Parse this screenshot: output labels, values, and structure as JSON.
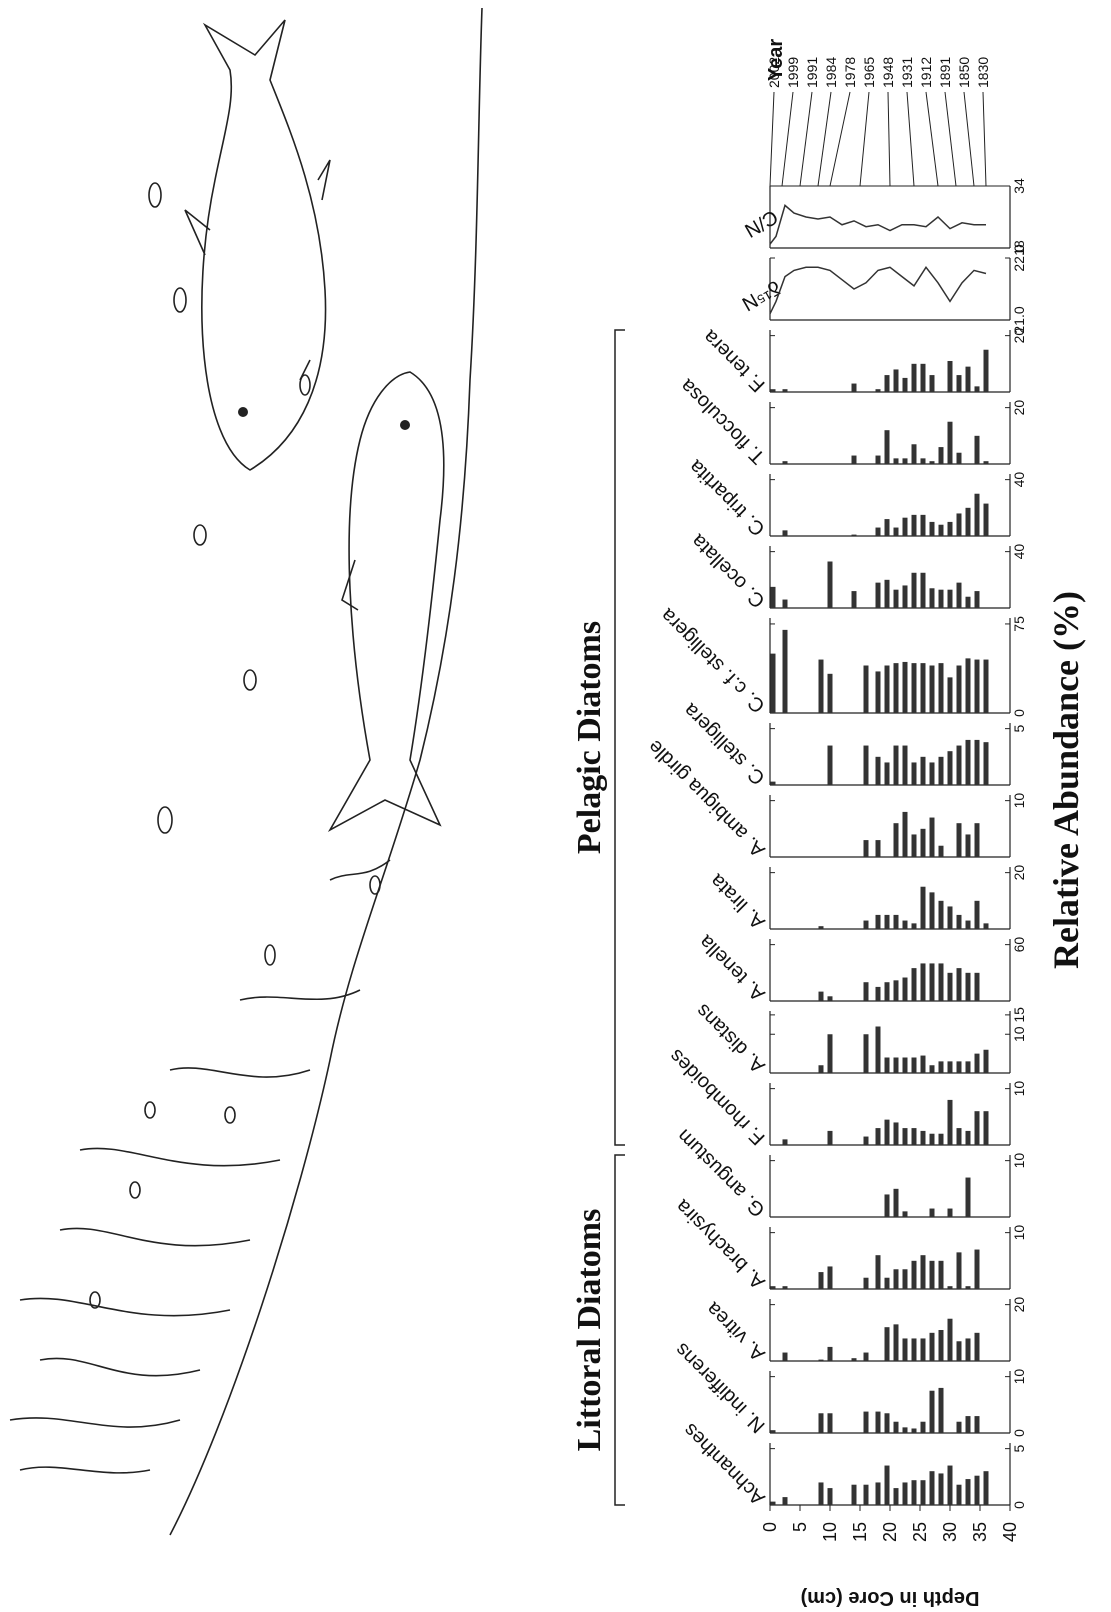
{
  "chart_data": {
    "type": "bar",
    "depth_label": "Depth in Core (cm)",
    "value_label": "Relative Abundance (%)",
    "depth_lim": [
      0,
      40
    ],
    "depth_ticks": [
      0,
      5,
      10,
      15,
      20,
      25,
      30,
      35,
      40
    ],
    "depths": [
      0.5,
      2.5,
      8.5,
      10,
      14,
      16,
      18,
      19.5,
      21,
      22.5,
      24,
      25.5,
      27,
      28.5,
      30,
      31.5,
      33,
      34.5,
      36
    ],
    "color": "#333333",
    "groups": [
      {
        "name": "Littoral Diatoms",
        "panels": [
          {
            "name": "Achnanthes",
            "xlim": [
              0,
              5.5
            ],
            "xticks": [
              0,
              5
            ],
            "values": [
              0.3,
              0.7,
              2,
              1.5,
              1.8,
              1.8,
              2,
              3.5,
              1.5,
              2,
              2.2,
              2.2,
              3,
              2.8,
              3.5,
              1.8,
              2.3,
              2.6,
              3
            ]
          },
          {
            "name": "N. indifferens",
            "xlim": [
              0,
              11
            ],
            "xticks": [
              0,
              10
            ],
            "values": [
              0.5,
              0,
              3.5,
              3.5,
              0,
              3.8,
              3.8,
              3.5,
              2,
              1,
              0.8,
              2,
              7.5,
              8,
              0,
              2,
              3,
              3,
              0
            ]
          },
          {
            "name": "A. vitrea",
            "xlim": [
              0,
              22
            ],
            "xticks": [
              20
            ],
            "values": [
              0,
              3,
              0.5,
              5,
              1,
              3,
              0,
              12,
              13,
              8,
              8,
              8,
              10,
              11,
              15,
              7,
              8,
              10,
              0
            ]
          },
          {
            "name": "A. brachysira",
            "xlim": [
              0,
              11
            ],
            "xticks": [
              10
            ],
            "values": [
              0.5,
              0.5,
              3,
              4,
              0,
              2,
              6,
              2,
              3.5,
              3.5,
              5,
              6,
              5,
              5,
              0.5,
              6.5,
              0.5,
              7,
              0
            ]
          },
          {
            "name": "G. angustum",
            "xlim": [
              0,
              11
            ],
            "xticks": [
              10
            ],
            "values": [
              0,
              0,
              0,
              0,
              0,
              0,
              0,
              4,
              5,
              1,
              0,
              0,
              1.5,
              0,
              1.5,
              0,
              7,
              0,
              0
            ]
          }
        ]
      },
      {
        "name": "Pelagic Diatoms",
        "panels": [
          {
            "name": "F. rhomboides",
            "xlim": [
              0,
              11
            ],
            "xticks": [
              10
            ],
            "values": [
              0,
              1,
              0,
              2.5,
              0,
              1.5,
              3,
              4.5,
              4,
              3,
              3,
              2.5,
              2,
              2,
              8,
              3,
              2.5,
              6,
              6
            ]
          },
          {
            "name": "A. distans",
            "xlim": [
              0,
              16
            ],
            "xticks": [
              10,
              15
            ],
            "values": [
              0,
              0,
              2,
              10,
              0,
              10,
              12,
              4,
              4,
              4,
              4,
              4.5,
              2,
              3,
              3,
              3,
              3,
              5,
              6
            ]
          },
          {
            "name": "A. tenella",
            "xlim": [
              0,
              66
            ],
            "xticks": [
              60
            ],
            "values": [
              0,
              0,
              10,
              5,
              0,
              20,
              15,
              20,
              22,
              25,
              35,
              40,
              40,
              40,
              30,
              35,
              30,
              30,
              0
            ]
          },
          {
            "name": "A. lirata",
            "xlim": [
              0,
              22
            ],
            "xticks": [
              20
            ],
            "values": [
              0,
              0,
              1,
              0,
              0,
              3,
              5,
              5,
              5,
              3,
              2,
              15,
              13,
              10,
              8,
              5,
              3,
              10,
              2
            ]
          },
          {
            "name": "A. ambigua girdle",
            "xlim": [
              0,
              11
            ],
            "xticks": [
              10
            ],
            "values": [
              0,
              0,
              0,
              0,
              0,
              3,
              3,
              0,
              6,
              8,
              4,
              5,
              7,
              2,
              0,
              6,
              4,
              6,
              0
            ]
          },
          {
            "name": "C. stelligera",
            "xlim": [
              0,
              5.5
            ],
            "xticks": [
              5
            ],
            "values": [
              0.3,
              0,
              0,
              3.5,
              0,
              3.5,
              2.5,
              2,
              3.5,
              3.5,
              2,
              2.5,
              2,
              2.5,
              3,
              3.5,
              4,
              4,
              3.8
            ]
          },
          {
            "name": "C. c.f. stelligera",
            "xlim": [
              0,
              80
            ],
            "xticks": [
              0,
              75
            ],
            "values": [
              50,
              70,
              45,
              33,
              0,
              40,
              35,
              40,
              42,
              43,
              42,
              42,
              40,
              42,
              30,
              40,
              46,
              45,
              45
            ]
          },
          {
            "name": "C. ocellata",
            "xlim": [
              0,
              44
            ],
            "xticks": [
              40
            ],
            "values": [
              15,
              6,
              0,
              33,
              12,
              0,
              18,
              20,
              13,
              16,
              25,
              25,
              14,
              13,
              13,
              18,
              8,
              12,
              0
            ]
          },
          {
            "name": "C. tripartita",
            "xlim": [
              0,
              44
            ],
            "xticks": [
              40
            ],
            "values": [
              0,
              4,
              0,
              0,
              1,
              0,
              6,
              12,
              6,
              13,
              15,
              15,
              10,
              8,
              10,
              16,
              20,
              30,
              23
            ]
          },
          {
            "name": "T. flocculosa",
            "xlim": [
              0,
              22
            ],
            "xticks": [
              20
            ],
            "values": [
              0,
              1,
              0,
              0,
              3,
              0,
              3,
              12,
              2,
              2,
              7,
              2,
              1,
              6,
              15,
              4,
              0,
              10,
              1
            ]
          },
          {
            "name": "F. tenera",
            "xlim": [
              0,
              22
            ],
            "xticks": [
              20
            ],
            "values": [
              1,
              1,
              0,
              0,
              3,
              0,
              1,
              6,
              8,
              5,
              10,
              10,
              6,
              0,
              11,
              6,
              9,
              2,
              15
            ]
          }
        ]
      }
    ],
    "lines": {
      "depths": [
        0,
        1,
        2.5,
        4,
        6,
        8,
        10,
        12,
        14,
        16,
        18,
        20,
        22,
        24,
        26,
        28,
        30,
        32,
        34,
        36
      ],
      "panels": [
        {
          "type": "line",
          "name": "δ¹⁵N",
          "xlim": [
            21,
            22
          ],
          "xticks": [
            {
              "value": 21,
              "label": "21.0"
            },
            {
              "value": 22,
              "label": "22.0"
            }
          ],
          "values": [
            21.1,
            21.3,
            21.7,
            21.8,
            21.85,
            21.85,
            21.8,
            21.65,
            21.5,
            21.6,
            21.8,
            21.85,
            21.7,
            21.55,
            21.85,
            21.6,
            21.3,
            21.6,
            21.8,
            21.75
          ]
        },
        {
          "type": "line",
          "name": "C/N",
          "xlim": [
            18,
            34
          ],
          "xticks": [
            18,
            34
          ],
          "values": [
            19,
            21,
            29,
            27,
            26,
            25.5,
            26,
            24,
            25,
            23.5,
            24,
            22.5,
            24,
            24,
            23.5,
            26,
            23,
            24.5,
            24,
            24
          ]
        }
      ]
    },
    "year_label": "Year",
    "year_ticks": [
      {
        "value": 0,
        "label": "2002"
      },
      {
        "value": 2,
        "label": "1999"
      },
      {
        "value": 5,
        "label": "1991"
      },
      {
        "value": 8,
        "label": "1984"
      },
      {
        "value": 10,
        "label": "1978"
      },
      {
        "value": 15,
        "label": "1965"
      },
      {
        "value": 20,
        "label": "1948"
      },
      {
        "value": 24,
        "label": "1931"
      },
      {
        "value": 28,
        "label": "1912"
      },
      {
        "value": 31,
        "label": "1891"
      },
      {
        "value": 34,
        "label": "1850"
      },
      {
        "value": 36,
        "label": "1830"
      }
    ]
  }
}
